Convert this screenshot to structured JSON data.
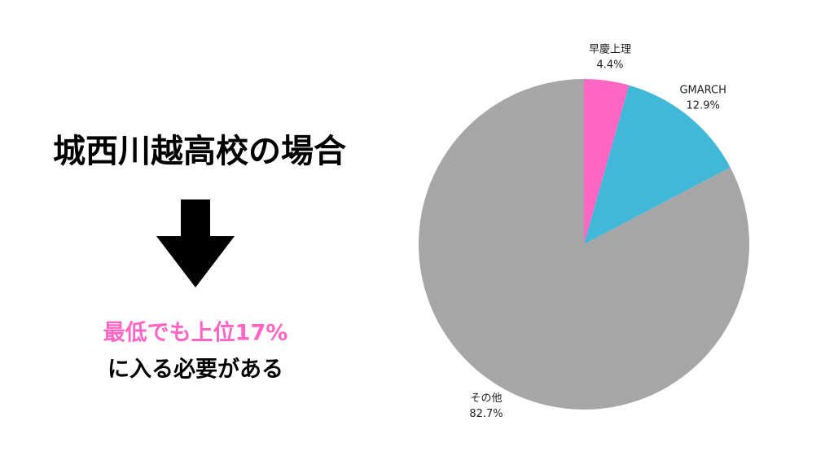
{
  "slide": {
    "heading": "城西川越高校の場合",
    "highlight": "最低でも上位17%",
    "note": "に入る必要がある"
  },
  "chart_data": {
    "type": "pie",
    "categories": [
      "早慶上理",
      "GMARCH",
      "その他"
    ],
    "values": [
      4.4,
      12.9,
      82.7
    ],
    "value_labels": [
      "4.4%",
      "12.9%",
      "82.7%"
    ],
    "colors": [
      "#ff66c4",
      "#42b8d8",
      "#a6a6a6"
    ]
  }
}
